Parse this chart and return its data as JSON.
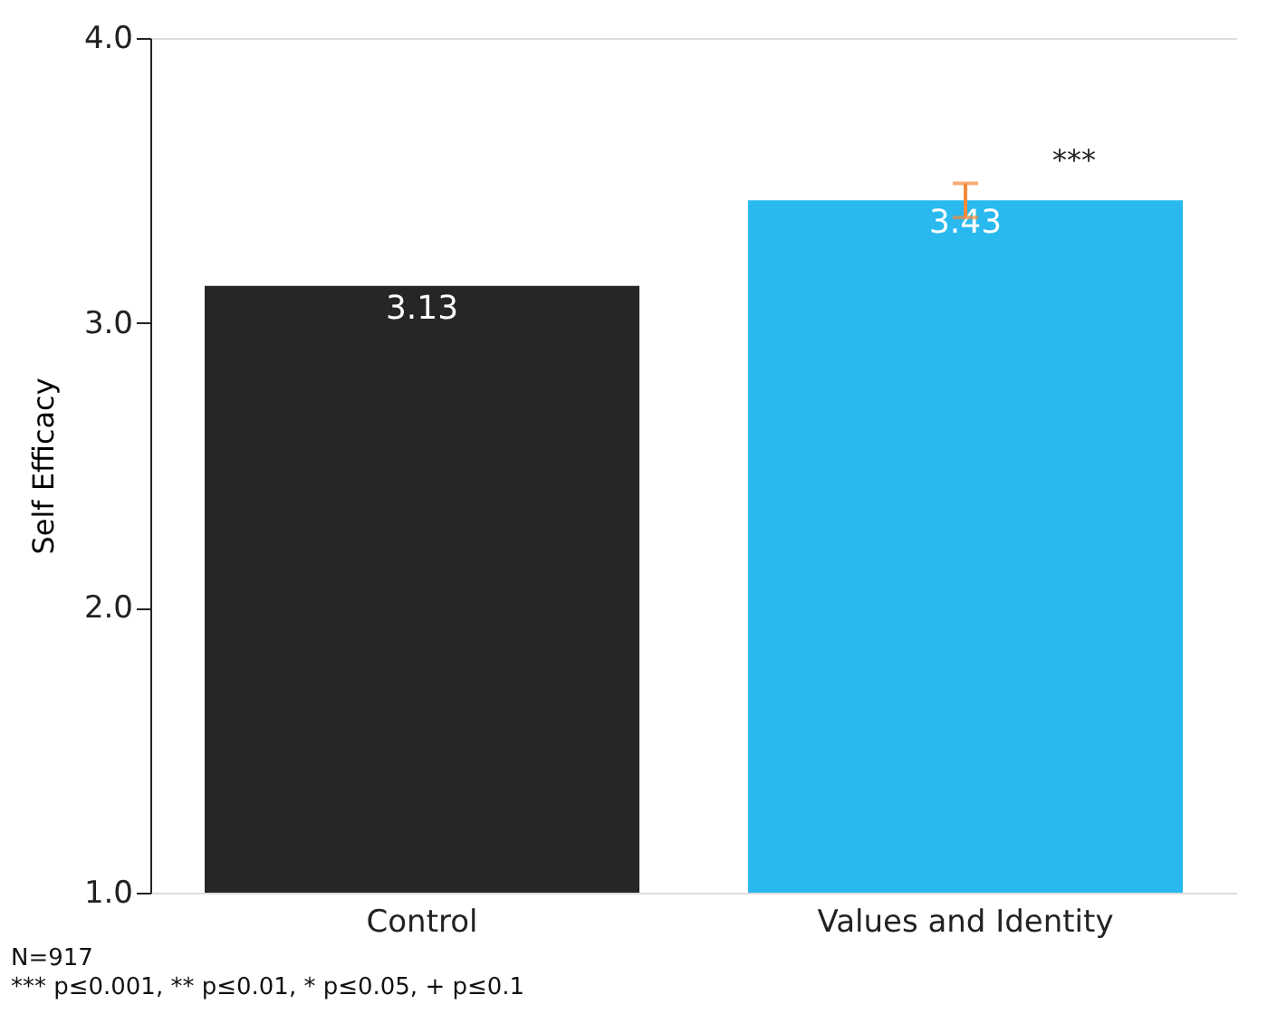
{
  "chart_data": {
    "type": "bar",
    "ylabel": "Self Efficacy",
    "categories": [
      "Control",
      "Values and Identity"
    ],
    "values": [
      3.13,
      3.43
    ],
    "colors": [
      "#262626",
      "#29b9ef"
    ],
    "errors": [
      null,
      0.06
    ],
    "data_labels": true,
    "ylim": [
      1,
      4
    ],
    "yticks": [
      {
        "value": 1,
        "label": "1.0"
      },
      {
        "value": 2,
        "label": "2.0"
      },
      {
        "value": 3,
        "label": "3.0"
      },
      {
        "value": 4,
        "label": "4.0"
      }
    ],
    "grid": false,
    "annotations": [
      "***",
      "N=917",
      "*** p≤0.001, ** p≤0.01, * p≤0.05, + p≤0.1"
    ]
  }
}
